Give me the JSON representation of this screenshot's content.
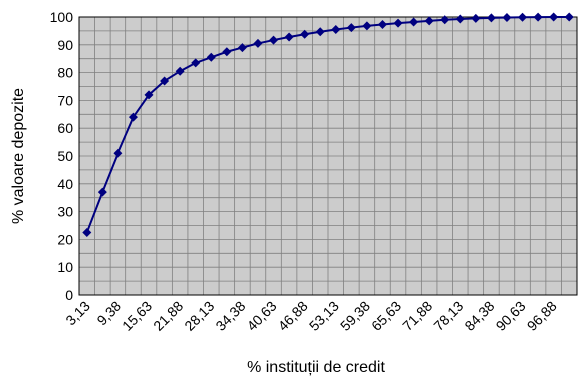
{
  "chart_data": {
    "type": "line",
    "xlabel": "% instituții de credit",
    "ylabel": "% valoare depozite",
    "ylim": [
      0,
      100
    ],
    "yticks": [
      "0",
      "10",
      "20",
      "30",
      "40",
      "50",
      "60",
      "70",
      "80",
      "90",
      "100"
    ],
    "x": [
      "3,13",
      "6,25",
      "9,38",
      "12,50",
      "15,63",
      "18,75",
      "21,88",
      "25,00",
      "28,13",
      "31,25",
      "34,38",
      "37,50",
      "40,63",
      "43,75",
      "46,88",
      "50,00",
      "53,13",
      "56,25",
      "59,38",
      "62,50",
      "65,63",
      "68,75",
      "71,88",
      "75,00",
      "78,13",
      "81,25",
      "84,38",
      "87,50",
      "90,63",
      "93,75",
      "96,88",
      "100,00"
    ],
    "xtick_labels": [
      "3,13",
      "9,38",
      "15,63",
      "21,88",
      "28,13",
      "34,38",
      "40,63",
      "46,88",
      "53,13",
      "59,38",
      "65,63",
      "71,88",
      "78,13",
      "84,38",
      "90,63",
      "96,88"
    ],
    "series": [
      {
        "values": [
          22.5,
          37,
          51,
          64,
          72,
          77,
          80.5,
          83.5,
          85.5,
          87.5,
          89,
          90.5,
          91.7,
          92.8,
          93.8,
          94.7,
          95.5,
          96.2,
          96.8,
          97.3,
          97.8,
          98.2,
          98.6,
          99,
          99.3,
          99.5,
          99.7,
          99.8,
          99.9,
          99.95,
          100,
          100
        ]
      }
    ],
    "grid": true,
    "legend": "none",
    "colors": {
      "plot_bg": "#cccccc",
      "line": "#000080",
      "grid": "#808080",
      "frame": "#000000"
    }
  }
}
